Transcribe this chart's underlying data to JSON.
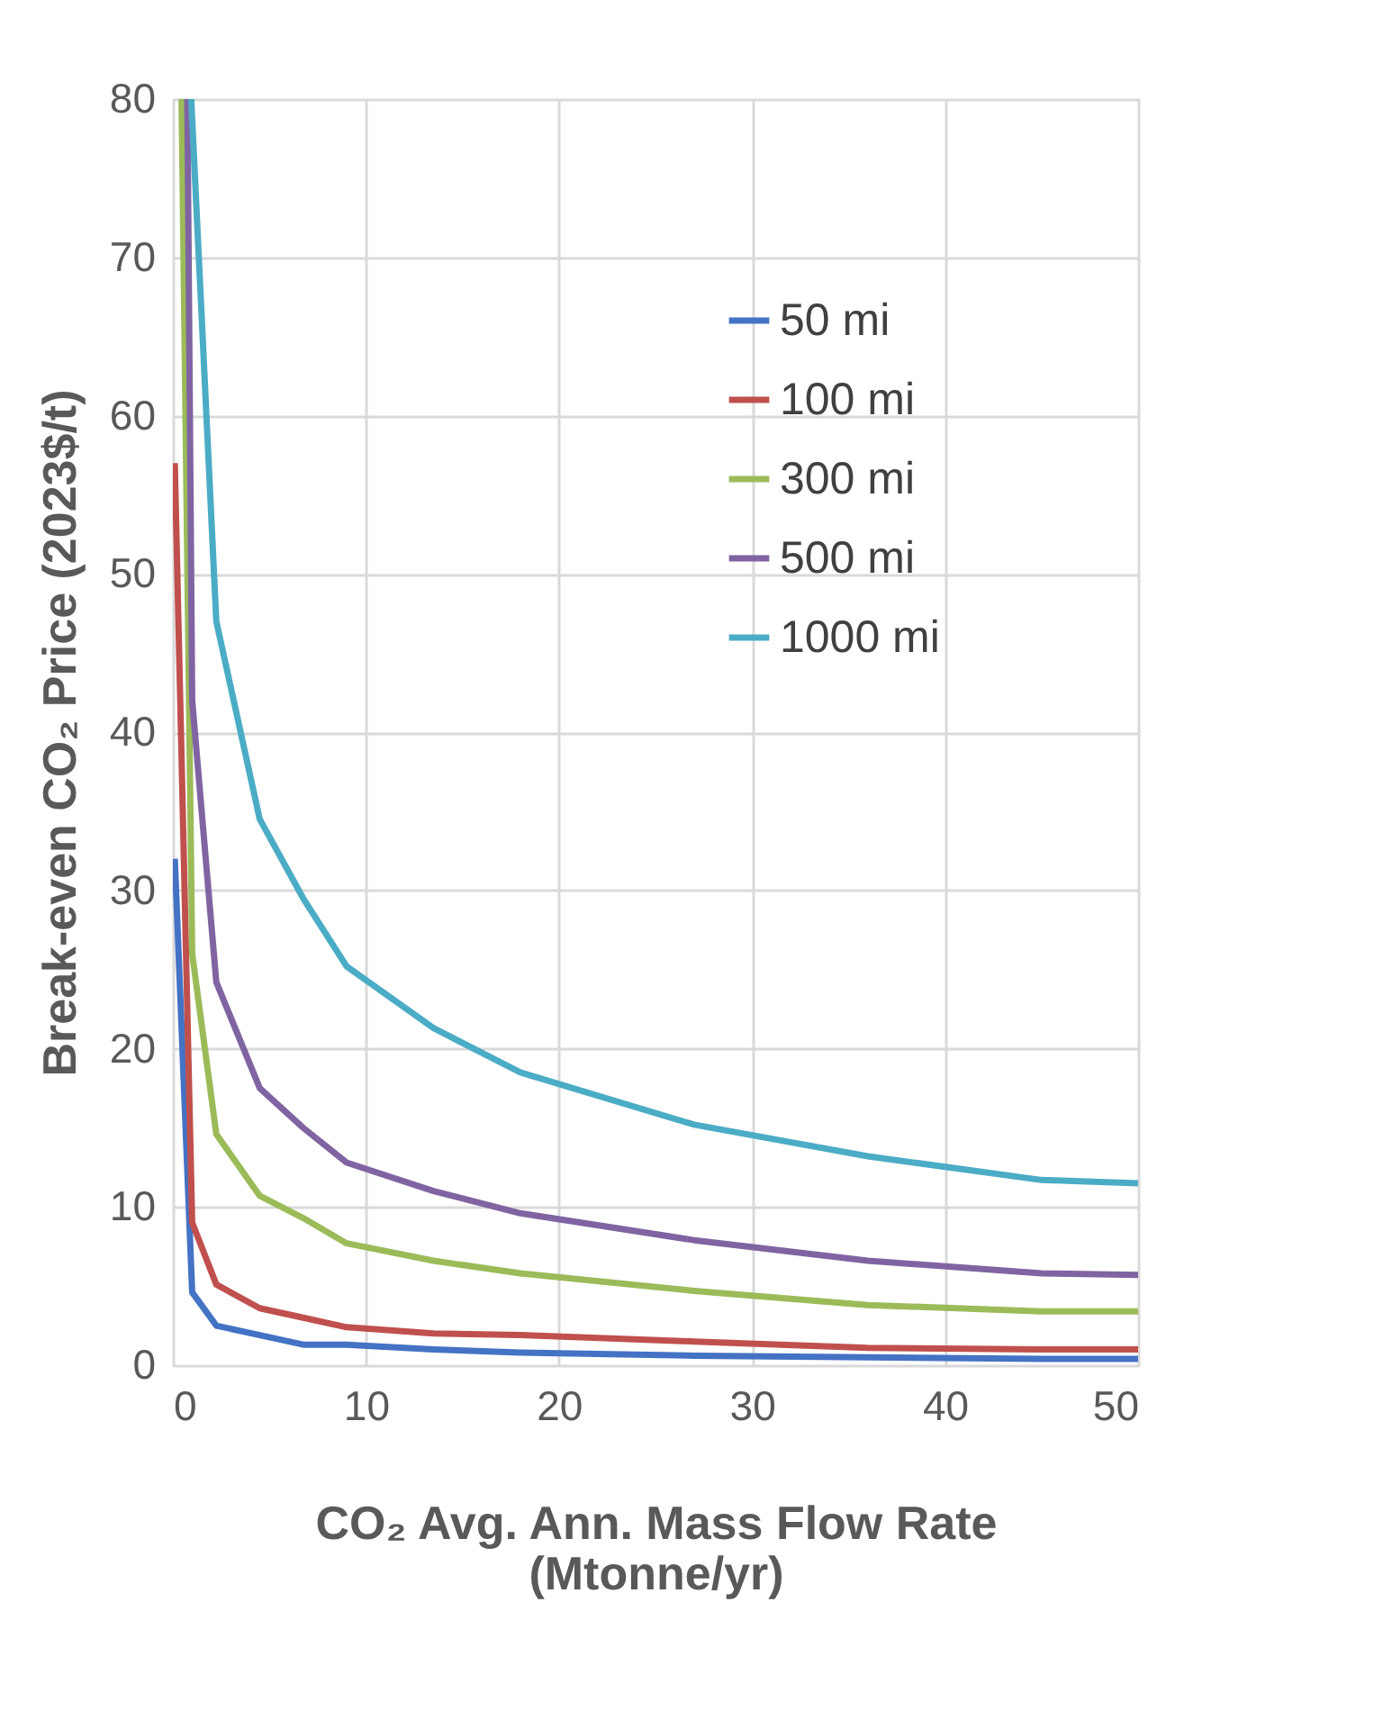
{
  "chart_data": {
    "type": "line",
    "xlabel": "CO₂ Avg. Ann. Mass Flow Rate\n(Mtonne/yr)",
    "ylabel": "Break-even CO₂ Price (2023$/t)",
    "xlim": [
      0,
      50
    ],
    "xticks": [
      0,
      10,
      20,
      30,
      40,
      50
    ],
    "ylim": [
      0,
      80
    ],
    "yticks": [
      0,
      10,
      20,
      30,
      40,
      50,
      60,
      70,
      80
    ],
    "grid": true,
    "legend": "top right",
    "line_style": "solid",
    "marker": "none",
    "series": [
      {
        "name": "50 mi",
        "color": "#4472c4",
        "x": [
          0.1,
          1,
          2.25,
          4.5,
          6.75,
          9,
          13.5,
          18,
          27,
          36,
          45,
          50
        ],
        "values": [
          32,
          4.6,
          2.5,
          1.9,
          1.3,
          1.3,
          1.0,
          0.8,
          0.6,
          0.5,
          0.4,
          0.4
        ]
      },
      {
        "name": "100 mi",
        "color": "#c0504d",
        "x": [
          0.1,
          1,
          2.25,
          4.5,
          6.75,
          9,
          13.5,
          18,
          27,
          36,
          45,
          50
        ],
        "values": [
          57,
          9,
          5.1,
          3.6,
          3,
          2.4,
          2.0,
          1.9,
          1.5,
          1.1,
          1.0,
          1.0
        ]
      },
      {
        "name": "300 mi",
        "color": "#9bbb59",
        "x": [
          0.45,
          1,
          2.25,
          4.5,
          6.75,
          9,
          13.5,
          18,
          27,
          36,
          45,
          50
        ],
        "values": [
          80,
          26,
          14.6,
          10.7,
          9.3,
          7.7,
          6.6,
          5.8,
          4.7,
          3.8,
          3.4,
          3.4
        ]
      },
      {
        "name": "500 mi",
        "color": "#8064a2",
        "x": [
          0.75,
          1,
          2.25,
          4.5,
          6.75,
          9,
          13.5,
          18,
          27,
          36,
          45,
          50
        ],
        "values": [
          80,
          42,
          24.2,
          17.5,
          15,
          12.8,
          11,
          9.6,
          7.9,
          6.6,
          5.8,
          5.7
        ]
      },
      {
        "name": "1000 mi",
        "color": "#4bacc6",
        "x": [
          0.95,
          2.25,
          4.5,
          6.75,
          9,
          13.5,
          18,
          27,
          36,
          45,
          50
        ],
        "values": [
          80,
          47,
          34.5,
          29.5,
          25.2,
          21.3,
          18.5,
          15.2,
          13.2,
          11.7,
          11.5
        ]
      }
    ]
  }
}
